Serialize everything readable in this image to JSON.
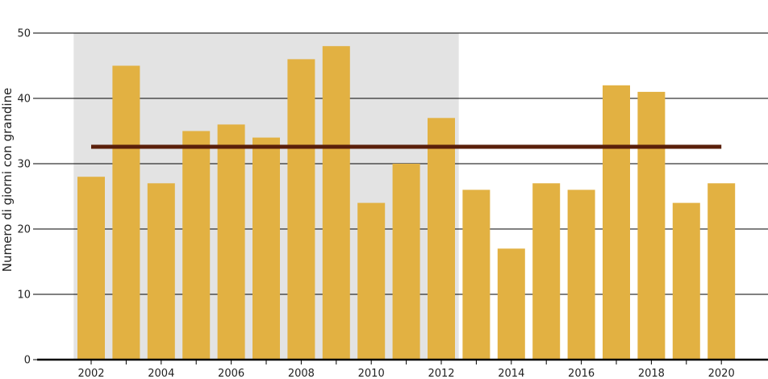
{
  "chart_data": {
    "type": "bar",
    "ylabel": "Numero di giorni con grandine",
    "xlabel": "",
    "ylim": [
      0,
      50
    ],
    "yticks": [
      0,
      10,
      20,
      30,
      40,
      50
    ],
    "xticks": [
      2002,
      2004,
      2006,
      2008,
      2010,
      2012,
      2014,
      2016,
      2018,
      2020
    ],
    "grid": "horizontal",
    "categories": [
      2002,
      2003,
      2004,
      2005,
      2006,
      2007,
      2008,
      2009,
      2010,
      2011,
      2012,
      2013,
      2014,
      2015,
      2016,
      2017,
      2018,
      2019,
      2020
    ],
    "values": [
      28,
      45,
      27,
      35,
      36,
      34,
      46,
      48,
      24,
      30,
      37,
      26,
      17,
      27,
      26,
      42,
      41,
      24,
      27
    ],
    "reference_period": [
      2002,
      2012
    ],
    "mean_line": {
      "value": 32.6,
      "from": 2002,
      "to": 2020
    },
    "colors": {
      "bar": "#e2b142",
      "mean_line": "#5a1f0a",
      "reference_band": "#e3e3e3",
      "grid": "#000000"
    }
  }
}
